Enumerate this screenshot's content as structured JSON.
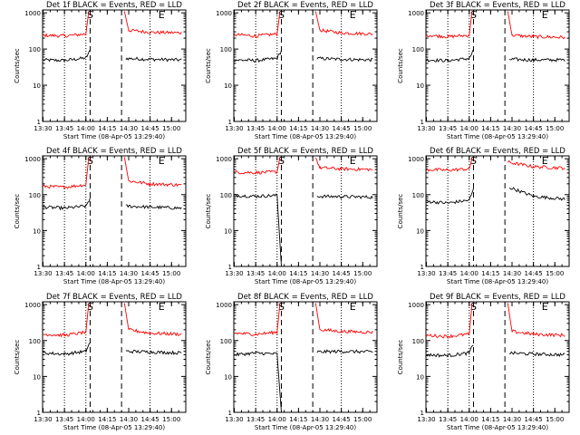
{
  "figure": {
    "common": {
      "ylabel": "Counts/sec",
      "xlabel": "Start Time (08-Apr-05 13:29:40)",
      "x_ticks": [
        "13:30",
        "13:45",
        "14:00",
        "14:15",
        "14:30",
        "14:45",
        "15:00"
      ],
      "y_ticks": [
        "1",
        "10",
        "100",
        "1000"
      ],
      "marker_S": "S",
      "marker_E": "E",
      "colors": {
        "events": "#000000",
        "lld": "#ff0000"
      }
    }
  },
  "chart_data": [
    {
      "type": "line",
      "title": "Det 1f BLACK = Events, RED = LLD",
      "xlim": [
        "13:29:40",
        "15:10"
      ],
      "ylim": [
        1,
        1200
      ],
      "ylog": true,
      "grid": false,
      "markers": {
        "S": "14:03",
        "E": "14:53"
      },
      "dashed_lines": [
        "14:03",
        "14:25"
      ],
      "dotted_lines": [
        "13:45",
        "14:00",
        "14:45"
      ],
      "series": [
        {
          "name": "Events",
          "color": "#000000",
          "values": [
            [
              "13:30",
              50
            ],
            [
              "13:45",
              48
            ],
            [
              "14:00",
              57
            ],
            [
              "14:03",
              90
            ],
            [
              "14:25",
              null
            ],
            [
              "14:28",
              55
            ],
            [
              "14:45",
              52
            ],
            [
              "15:07",
              50
            ]
          ]
        },
        {
          "name": "LLD",
          "color": "#ff0000",
          "values": [
            [
              "13:30",
              240
            ],
            [
              "13:45",
              230
            ],
            [
              "14:00",
              260
            ],
            [
              "14:02",
              1100
            ],
            [
              "14:25",
              null
            ],
            [
              "14:27",
              1100
            ],
            [
              "14:30",
              330
            ],
            [
              "14:45",
              290
            ],
            [
              "15:07",
              280
            ]
          ]
        }
      ]
    },
    {
      "type": "line",
      "title": "Det 2f BLACK = Events, RED = LLD",
      "xlim": [
        "13:29:40",
        "15:10"
      ],
      "ylim": [
        1,
        1200
      ],
      "ylog": true,
      "grid": false,
      "markers": {
        "S": "14:03",
        "E": "14:53"
      },
      "dashed_lines": [
        "14:03",
        "14:25"
      ],
      "dotted_lines": [
        "13:45",
        "14:00",
        "14:45"
      ],
      "series": [
        {
          "name": "Events",
          "color": "#000000",
          "values": [
            [
              "13:30",
              50
            ],
            [
              "13:45",
              48
            ],
            [
              "14:00",
              55
            ],
            [
              "14:03",
              90
            ],
            [
              "14:25",
              null
            ],
            [
              "14:28",
              55
            ],
            [
              "14:45",
              52
            ],
            [
              "15:07",
              50
            ]
          ]
        },
        {
          "name": "LLD",
          "color": "#ff0000",
          "values": [
            [
              "13:30",
              250
            ],
            [
              "13:45",
              230
            ],
            [
              "14:00",
              260
            ],
            [
              "14:02",
              1100
            ],
            [
              "14:25",
              null
            ],
            [
              "14:27",
              1100
            ],
            [
              "14:30",
              330
            ],
            [
              "14:45",
              280
            ],
            [
              "15:07",
              260
            ]
          ]
        }
      ]
    },
    {
      "type": "line",
      "title": "Det 3f BLACK = Events, RED = LLD",
      "xlim": [
        "13:29:40",
        "15:10"
      ],
      "ylim": [
        1,
        1200
      ],
      "ylog": true,
      "grid": false,
      "markers": {
        "S": "14:03",
        "E": "14:53"
      },
      "dashed_lines": [
        "14:03",
        "14:25"
      ],
      "dotted_lines": [
        "13:45",
        "14:00",
        "14:45"
      ],
      "series": [
        {
          "name": "Events",
          "color": "#000000",
          "values": [
            [
              "13:30",
              50
            ],
            [
              "13:45",
              48
            ],
            [
              "14:00",
              55
            ],
            [
              "14:03",
              90
            ],
            [
              "14:25",
              null
            ],
            [
              "14:28",
              52
            ],
            [
              "14:45",
              50
            ],
            [
              "15:07",
              50
            ]
          ]
        },
        {
          "name": "LLD",
          "color": "#ff0000",
          "values": [
            [
              "13:30",
              240
            ],
            [
              "13:45",
              220
            ],
            [
              "14:00",
              240
            ],
            [
              "14:02",
              1100
            ],
            [
              "14:25",
              null
            ],
            [
              "14:27",
              1100
            ],
            [
              "14:30",
              240
            ],
            [
              "14:45",
              220
            ],
            [
              "15:07",
              210
            ]
          ]
        }
      ]
    },
    {
      "type": "line",
      "title": "Det 4f BLACK = Events, RED = LLD",
      "xlim": [
        "13:29:40",
        "15:10"
      ],
      "ylim": [
        1,
        1200
      ],
      "ylog": true,
      "grid": false,
      "markers": {
        "S": "14:03",
        "E": "14:53"
      },
      "dashed_lines": [
        "14:03",
        "14:25"
      ],
      "dotted_lines": [
        "13:45",
        "14:00",
        "14:45"
      ],
      "series": [
        {
          "name": "Events",
          "color": "#000000",
          "values": [
            [
              "13:30",
              45
            ],
            [
              "13:45",
              42
            ],
            [
              "14:00",
              48
            ],
            [
              "14:03",
              80
            ],
            [
              "14:25",
              null
            ],
            [
              "14:28",
              48
            ],
            [
              "14:45",
              45
            ],
            [
              "15:07",
              42
            ]
          ]
        },
        {
          "name": "LLD",
          "color": "#ff0000",
          "values": [
            [
              "13:30",
              170
            ],
            [
              "13:45",
              160
            ],
            [
              "14:00",
              190
            ],
            [
              "14:02",
              1100
            ],
            [
              "14:25",
              null
            ],
            [
              "14:27",
              1100
            ],
            [
              "14:30",
              240
            ],
            [
              "14:45",
              200
            ],
            [
              "15:07",
              185
            ]
          ]
        }
      ]
    },
    {
      "type": "line",
      "title": "Det 5f BLACK = Events, RED = LLD",
      "xlim": [
        "13:29:40",
        "15:10"
      ],
      "ylim": [
        1,
        1200
      ],
      "ylog": true,
      "grid": false,
      "markers": {
        "S": "14:03",
        "E": "14:53"
      },
      "dashed_lines": [
        "14:03",
        "14:25"
      ],
      "dotted_lines": [
        "13:45",
        "14:00",
        "14:45"
      ],
      "series": [
        {
          "name": "Events",
          "color": "#000000",
          "values": [
            [
              "13:30",
              95
            ],
            [
              "13:45",
              90
            ],
            [
              "14:00",
              95
            ],
            [
              "14:03",
              1
            ],
            [
              "14:25",
              null
            ],
            [
              "14:28",
              90
            ],
            [
              "14:45",
              88
            ],
            [
              "15:07",
              85
            ]
          ]
        },
        {
          "name": "LLD",
          "color": "#ff0000",
          "values": [
            [
              "13:30",
              420
            ],
            [
              "13:45",
              410
            ],
            [
              "14:00",
              430
            ],
            [
              "14:02",
              1100
            ],
            [
              "14:25",
              null
            ],
            [
              "14:27",
              1100
            ],
            [
              "14:30",
              560
            ],
            [
              "14:45",
              520
            ],
            [
              "15:07",
              500
            ]
          ]
        }
      ]
    },
    {
      "type": "line",
      "title": "Det 6f BLACK = Events, RED = LLD",
      "xlim": [
        "13:29:40",
        "15:10"
      ],
      "ylim": [
        1,
        1200
      ],
      "ylog": true,
      "grid": false,
      "markers": {
        "S": "14:03",
        "E": "14:53"
      },
      "dashed_lines": [
        "14:03",
        "14:25"
      ],
      "dotted_lines": [
        "13:45",
        "14:00",
        "14:45"
      ],
      "series": [
        {
          "name": "Events",
          "color": "#000000",
          "values": [
            [
              "13:30",
              65
            ],
            [
              "13:45",
              58
            ],
            [
              "14:00",
              70
            ],
            [
              "14:03",
              140
            ],
            [
              "14:25",
              null
            ],
            [
              "14:28",
              160
            ],
            [
              "14:45",
              90
            ],
            [
              "15:07",
              75
            ]
          ]
        },
        {
          "name": "LLD",
          "color": "#ff0000",
          "values": [
            [
              "13:30",
              500
            ],
            [
              "13:45",
              480
            ],
            [
              "14:00",
              520
            ],
            [
              "14:02",
              1100
            ],
            [
              "14:25",
              null
            ],
            [
              "14:27",
              800
            ],
            [
              "14:45",
              600
            ],
            [
              "15:07",
              550
            ]
          ]
        }
      ]
    },
    {
      "type": "line",
      "title": "Det 7f BLACK = Events, RED = LLD",
      "xlim": [
        "13:29:40",
        "15:10"
      ],
      "ylim": [
        1,
        1200
      ],
      "ylog": true,
      "grid": false,
      "markers": {
        "S": "14:03",
        "E": "14:53"
      },
      "dashed_lines": [
        "14:03",
        "14:25"
      ],
      "dotted_lines": [
        "13:45",
        "14:00",
        "14:45"
      ],
      "series": [
        {
          "name": "Events",
          "color": "#000000",
          "values": [
            [
              "13:30",
              45
            ],
            [
              "13:45",
              42
            ],
            [
              "14:00",
              50
            ],
            [
              "14:03",
              90
            ],
            [
              "14:25",
              null
            ],
            [
              "14:28",
              50
            ],
            [
              "14:45",
              48
            ],
            [
              "15:07",
              45
            ]
          ]
        },
        {
          "name": "LLD",
          "color": "#ff0000",
          "values": [
            [
              "13:30",
              150
            ],
            [
              "13:45",
              140
            ],
            [
              "14:00",
              170
            ],
            [
              "14:02",
              1100
            ],
            [
              "14:25",
              null
            ],
            [
              "14:27",
              1100
            ],
            [
              "14:30",
              200
            ],
            [
              "14:45",
              160
            ],
            [
              "15:07",
              150
            ]
          ]
        }
      ]
    },
    {
      "type": "line",
      "title": "Det 8f BLACK = Events, RED = LLD",
      "xlim": [
        "13:29:40",
        "15:10"
      ],
      "ylim": [
        1,
        1200
      ],
      "ylog": true,
      "grid": false,
      "markers": {
        "S": "14:03",
        "E": "14:53"
      },
      "dashed_lines": [
        "14:03",
        "14:25"
      ],
      "dotted_lines": [
        "13:45",
        "14:00",
        "14:45"
      ],
      "series": [
        {
          "name": "Events",
          "color": "#000000",
          "values": [
            [
              "13:30",
              40
            ],
            [
              "13:45",
              45
            ],
            [
              "14:00",
              42
            ],
            [
              "14:03",
              1
            ],
            [
              "14:25",
              null
            ],
            [
              "14:28",
              48
            ],
            [
              "14:45",
              50
            ],
            [
              "15:07",
              48
            ]
          ]
        },
        {
          "name": "LLD",
          "color": "#ff0000",
          "values": [
            [
              "13:30",
              160
            ],
            [
              "13:45",
              150
            ],
            [
              "14:00",
              170
            ],
            [
              "14:02",
              1100
            ],
            [
              "14:25",
              null
            ],
            [
              "14:27",
              1100
            ],
            [
              "14:30",
              200
            ],
            [
              "14:45",
              180
            ],
            [
              "15:07",
              170
            ]
          ]
        }
      ]
    },
    {
      "type": "line",
      "title": "Det 9f BLACK = Events, RED = LLD",
      "xlim": [
        "13:29:40",
        "15:10"
      ],
      "ylim": [
        1,
        1200
      ],
      "ylog": true,
      "grid": false,
      "markers": {
        "S": "14:03",
        "E": "14:53"
      },
      "dashed_lines": [
        "14:03",
        "14:25"
      ],
      "dotted_lines": [
        "13:45",
        "14:00",
        "14:45"
      ],
      "series": [
        {
          "name": "Events",
          "color": "#000000",
          "values": [
            [
              "13:30",
              40
            ],
            [
              "13:45",
              38
            ],
            [
              "14:00",
              45
            ],
            [
              "14:03",
              80
            ],
            [
              "14:25",
              null
            ],
            [
              "14:28",
              45
            ],
            [
              "14:45",
              42
            ],
            [
              "15:07",
              40
            ]
          ]
        },
        {
          "name": "LLD",
          "color": "#ff0000",
          "values": [
            [
              "13:30",
              140
            ],
            [
              "13:45",
              130
            ],
            [
              "14:00",
              150
            ],
            [
              "14:02",
              1100
            ],
            [
              "14:25",
              null
            ],
            [
              "14:27",
              1100
            ],
            [
              "14:30",
              180
            ],
            [
              "14:45",
              150
            ],
            [
              "15:07",
              140
            ]
          ]
        }
      ]
    }
  ]
}
